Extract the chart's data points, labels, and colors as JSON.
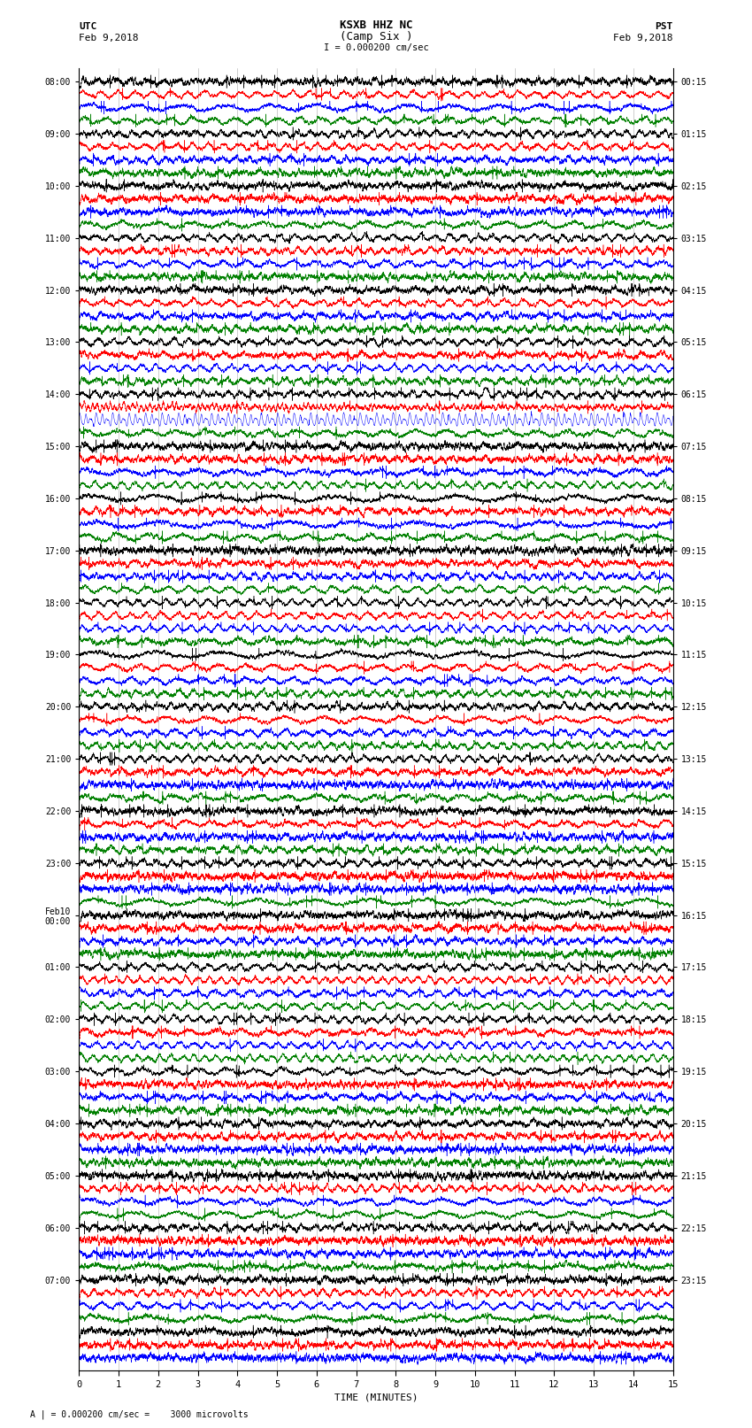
{
  "title_line1": "KSXB HHZ NC",
  "title_line2": "(Camp Six )",
  "scale_label": "I = 0.000200 cm/sec",
  "left_header1": "UTC",
  "left_header2": "Feb 9,2018",
  "right_header1": "PST",
  "right_header2": "Feb 9,2018",
  "bottom_label": "TIME (MINUTES)",
  "bottom_note": "A | = 0.000200 cm/sec =    3000 microvolts",
  "utc_times_left": [
    "08:00",
    "",
    "",
    "",
    "09:00",
    "",
    "",
    "",
    "10:00",
    "",
    "",
    "",
    "11:00",
    "",
    "",
    "",
    "12:00",
    "",
    "",
    "",
    "13:00",
    "",
    "",
    "",
    "14:00",
    "",
    "",
    "",
    "15:00",
    "",
    "",
    "",
    "16:00",
    "",
    "",
    "",
    "17:00",
    "",
    "",
    "",
    "18:00",
    "",
    "",
    "",
    "19:00",
    "",
    "",
    "",
    "20:00",
    "",
    "",
    "",
    "21:00",
    "",
    "",
    "",
    "22:00",
    "",
    "",
    "",
    "23:00",
    "",
    "",
    "",
    "Feb10\n00:00",
    "",
    "",
    "",
    "01:00",
    "",
    "",
    "",
    "02:00",
    "",
    "",
    "",
    "03:00",
    "",
    "",
    "",
    "04:00",
    "",
    "",
    "",
    "05:00",
    "",
    "",
    "",
    "06:00",
    "",
    "",
    "",
    "07:00",
    "",
    ""
  ],
  "pst_times_right": [
    "00:15",
    "",
    "",
    "",
    "01:15",
    "",
    "",
    "",
    "02:15",
    "",
    "",
    "",
    "03:15",
    "",
    "",
    "",
    "04:15",
    "",
    "",
    "",
    "05:15",
    "",
    "",
    "",
    "06:15",
    "",
    "",
    "",
    "07:15",
    "",
    "",
    "",
    "08:15",
    "",
    "",
    "",
    "09:15",
    "",
    "",
    "",
    "10:15",
    "",
    "",
    "",
    "11:15",
    "",
    "",
    "",
    "12:15",
    "",
    "",
    "",
    "13:15",
    "",
    "",
    "",
    "14:15",
    "",
    "",
    "",
    "15:15",
    "",
    "",
    "",
    "16:15",
    "",
    "",
    "",
    "17:15",
    "",
    "",
    "",
    "18:15",
    "",
    "",
    "",
    "19:15",
    "",
    "",
    "",
    "20:15",
    "",
    "",
    "",
    "21:15",
    "",
    "",
    "",
    "22:15",
    "",
    "",
    "",
    "23:15",
    "",
    ""
  ],
  "colors": [
    "black",
    "red",
    "blue",
    "green"
  ],
  "n_traces_per_hour": 4,
  "n_hours": 24,
  "n_extra": 3,
  "x_ticks": [
    0,
    1,
    2,
    3,
    4,
    5,
    6,
    7,
    8,
    9,
    10,
    11,
    12,
    13,
    14,
    15
  ],
  "bg_color": "white",
  "fig_width": 8.5,
  "fig_height": 16.13,
  "event_blue_row": 26,
  "event_red_row": 25,
  "event_black_row": 24,
  "grid_color": "#aaaaaa",
  "grid_lw": 0.4
}
